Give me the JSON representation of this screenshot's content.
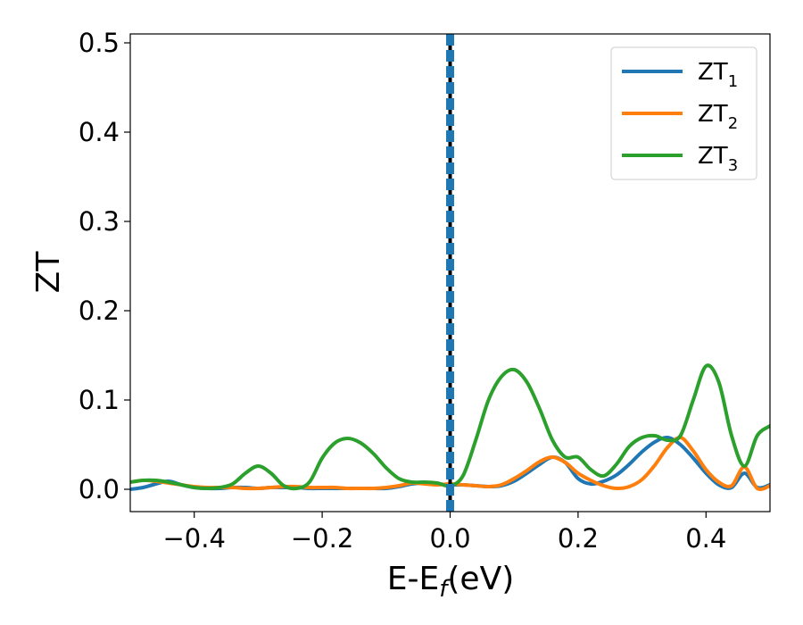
{
  "chart_data": {
    "type": "line",
    "title": "",
    "xlabel": "E-E",
    "xlabel_sub": "f",
    "xlabel_unit": "(eV)",
    "ylabel": "ZT",
    "xlim": [
      -0.5,
      0.5
    ],
    "ylim": [
      -0.025,
      0.51
    ],
    "x_ticks": [
      -0.4,
      -0.2,
      0.0,
      0.2,
      0.4
    ],
    "x_tick_labels": [
      "−0.4",
      "−0.2",
      "0.0",
      "0.2",
      "0.4"
    ],
    "y_ticks": [
      0.0,
      0.1,
      0.2,
      0.3,
      0.4,
      0.5
    ],
    "y_tick_labels": [
      "0.0",
      "0.1",
      "0.2",
      "0.3",
      "0.4",
      "0.5"
    ],
    "grid": false,
    "legend_position": "top-right",
    "fermi_line_x": 0.0,
    "x": [
      -0.5,
      -0.48,
      -0.46,
      -0.44,
      -0.42,
      -0.4,
      -0.38,
      -0.36,
      -0.34,
      -0.32,
      -0.3,
      -0.28,
      -0.26,
      -0.24,
      -0.22,
      -0.2,
      -0.18,
      -0.16,
      -0.14,
      -0.12,
      -0.1,
      -0.08,
      -0.06,
      -0.04,
      -0.02,
      0.0,
      0.02,
      0.04,
      0.06,
      0.08,
      0.1,
      0.12,
      0.14,
      0.16,
      0.18,
      0.2,
      0.22,
      0.24,
      0.26,
      0.28,
      0.3,
      0.32,
      0.34,
      0.36,
      0.38,
      0.4,
      0.42,
      0.44,
      0.46,
      0.48,
      0.5
    ],
    "series": [
      {
        "name": "ZT",
        "name_sub": "1",
        "color": "#1f77b4",
        "values": [
          0.0,
          0.002,
          0.006,
          0.009,
          0.005,
          0.002,
          0.001,
          0.001,
          0.002,
          0.002,
          0.001,
          0.002,
          0.002,
          0.002,
          0.001,
          0.001,
          0.001,
          0.001,
          0.001,
          0.001,
          0.001,
          0.003,
          0.006,
          0.007,
          0.006,
          0.005,
          0.005,
          0.004,
          0.003,
          0.004,
          0.009,
          0.018,
          0.028,
          0.036,
          0.03,
          0.012,
          0.006,
          0.009,
          0.016,
          0.028,
          0.042,
          0.053,
          0.058,
          0.05,
          0.035,
          0.018,
          0.005,
          0.002,
          0.018,
          0.002,
          0.005
        ]
      },
      {
        "name": "ZT",
        "name_sub": "2",
        "color": "#ff7f0e",
        "values": [
          0.008,
          0.01,
          0.009,
          0.007,
          0.005,
          0.003,
          0.002,
          0.002,
          0.002,
          0.001,
          0.001,
          0.002,
          0.003,
          0.003,
          0.002,
          0.002,
          0.002,
          0.001,
          0.001,
          0.001,
          0.002,
          0.004,
          0.007,
          0.006,
          0.005,
          0.006,
          0.005,
          0.004,
          0.003,
          0.005,
          0.012,
          0.021,
          0.031,
          0.036,
          0.03,
          0.018,
          0.01,
          0.004,
          0.001,
          0.003,
          0.011,
          0.027,
          0.047,
          0.058,
          0.043,
          0.022,
          0.008,
          0.004,
          0.025,
          0.001,
          0.004
        ]
      },
      {
        "name": "ZT",
        "name_sub": "3",
        "color": "#2ca02c",
        "values": [
          0.008,
          0.01,
          0.01,
          0.008,
          0.005,
          0.002,
          0.001,
          0.002,
          0.006,
          0.018,
          0.026,
          0.018,
          0.004,
          0.001,
          0.008,
          0.035,
          0.052,
          0.057,
          0.052,
          0.04,
          0.024,
          0.012,
          0.008,
          0.008,
          0.007,
          0.004,
          0.015,
          0.055,
          0.1,
          0.126,
          0.134,
          0.12,
          0.09,
          0.055,
          0.036,
          0.036,
          0.022,
          0.015,
          0.028,
          0.048,
          0.058,
          0.06,
          0.055,
          0.06,
          0.1,
          0.138,
          0.12,
          0.06,
          0.026,
          0.06,
          0.071
        ]
      }
    ]
  }
}
